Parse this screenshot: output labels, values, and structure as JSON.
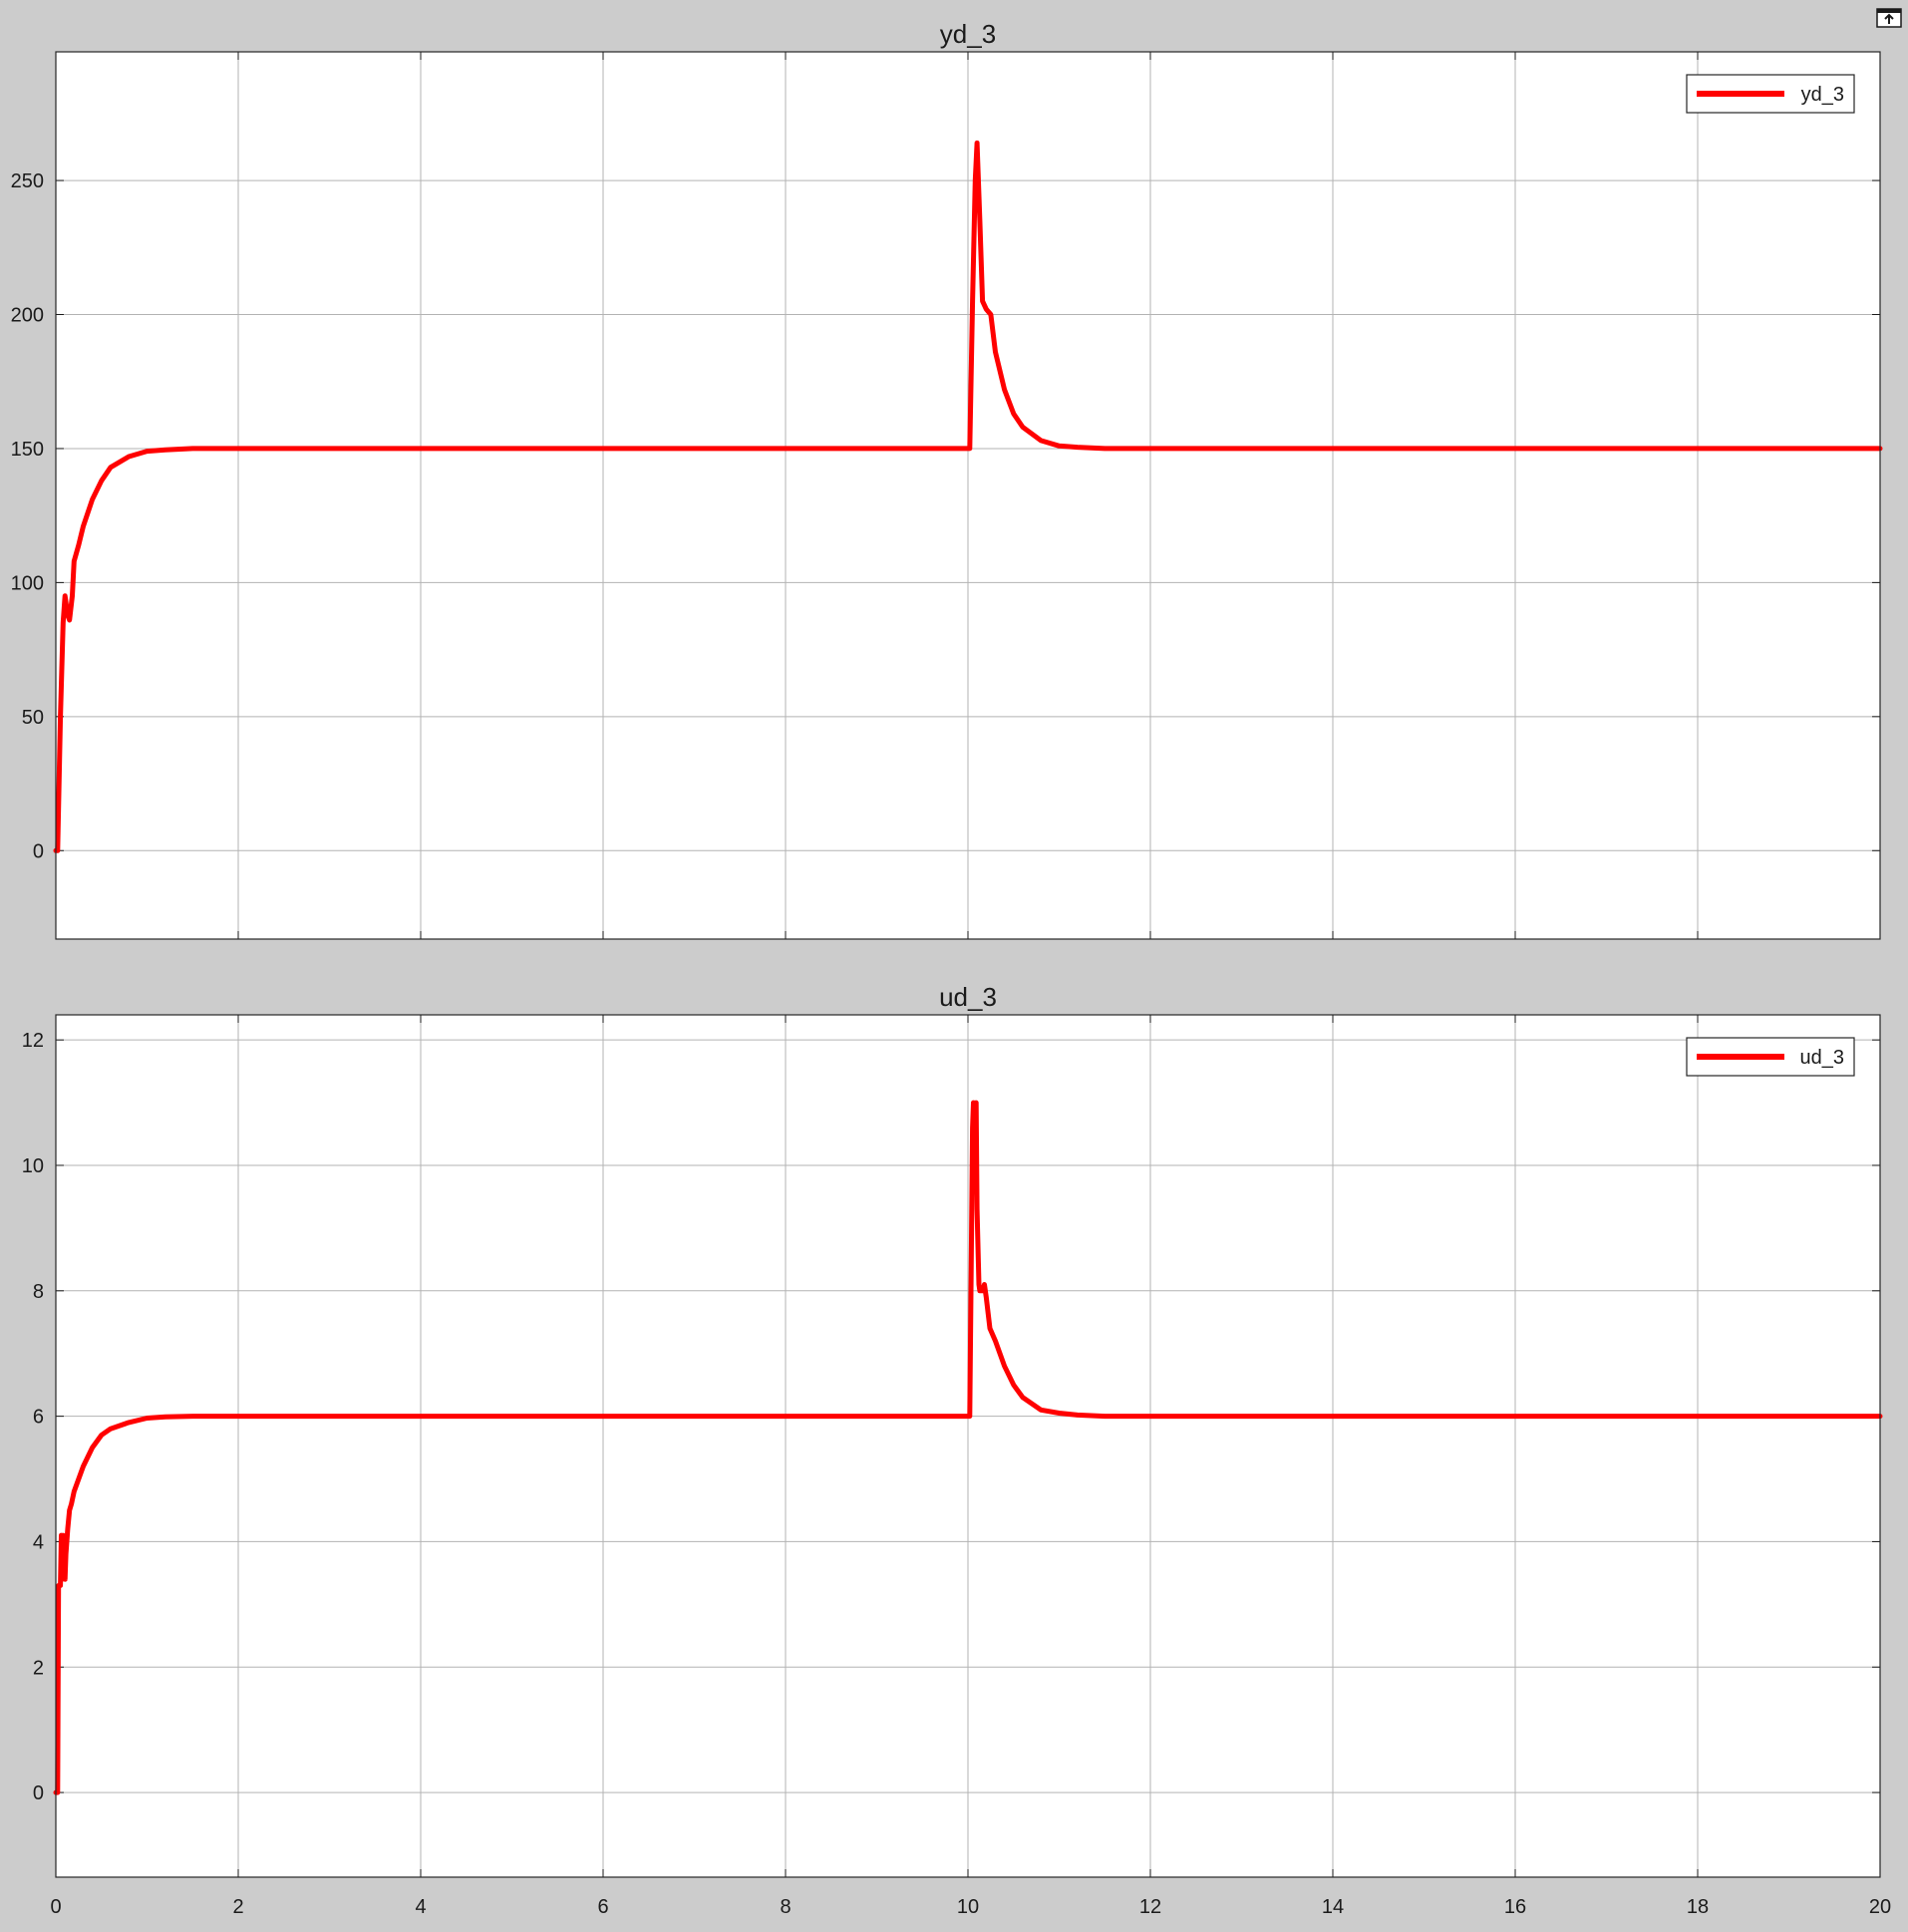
{
  "window": {
    "undock_icon": "undock-icon"
  },
  "colors": {
    "background": "#cccccc",
    "axes_bg": "#ffffff",
    "grid": "#b3b3b3",
    "line": "#ff0000",
    "text": "#1a1a1a"
  },
  "chart_data": [
    {
      "type": "line",
      "title": "yd_3",
      "xlabel": "",
      "ylabel": "",
      "xlim": [
        0,
        20
      ],
      "ylim": [
        -33,
        298
      ],
      "xticks": [
        0,
        2,
        4,
        6,
        8,
        10,
        12,
        14,
        16,
        18,
        20
      ],
      "xtick_labels": [
        "",
        "",
        "",
        "",
        "",
        "",
        "",
        "",
        "",
        "",
        ""
      ],
      "yticks": [
        0,
        50,
        100,
        150,
        200,
        250
      ],
      "ytick_labels": [
        "0",
        "50",
        "100",
        "150",
        "200",
        "250"
      ],
      "grid": true,
      "legend": "top-right",
      "series": [
        {
          "name": "yd_3",
          "color": "#ff0000",
          "x": [
            0,
            0.02,
            0.05,
            0.08,
            0.1,
            0.13,
            0.15,
            0.18,
            0.2,
            0.25,
            0.3,
            0.4,
            0.5,
            0.6,
            0.8,
            1.0,
            1.2,
            1.5,
            2.0,
            3,
            4,
            5,
            6,
            7,
            8,
            9,
            10.0,
            10.02,
            10.05,
            10.08,
            10.1,
            10.13,
            10.16,
            10.2,
            10.25,
            10.3,
            10.4,
            10.5,
            10.6,
            10.8,
            11.0,
            11.2,
            11.5,
            12.0,
            13,
            14,
            15,
            16,
            17,
            18,
            19,
            20
          ],
          "y": [
            0,
            0,
            50,
            85,
            95,
            88,
            86,
            95,
            108,
            114,
            121,
            131,
            138,
            143,
            147,
            149,
            149.5,
            150,
            150,
            150,
            150,
            150,
            150,
            150,
            150,
            150,
            150,
            150,
            205,
            250,
            264,
            235,
            205,
            202,
            200,
            186,
            172,
            163,
            158,
            153,
            151,
            150.5,
            150,
            150,
            150,
            150,
            150,
            150,
            150,
            150,
            150,
            150
          ]
        }
      ]
    },
    {
      "type": "line",
      "title": "ud_3",
      "xlabel": "",
      "ylabel": "",
      "xlim": [
        0,
        20
      ],
      "ylim": [
        -1.35,
        12.4
      ],
      "xticks": [
        0,
        2,
        4,
        6,
        8,
        10,
        12,
        14,
        16,
        18,
        20
      ],
      "xtick_labels": [
        "0",
        "2",
        "4",
        "6",
        "8",
        "10",
        "12",
        "14",
        "16",
        "18",
        "20"
      ],
      "yticks": [
        0,
        2,
        4,
        6,
        8,
        10,
        12
      ],
      "ytick_labels": [
        "0",
        "2",
        "4",
        "6",
        "8",
        "10",
        "12"
      ],
      "grid": true,
      "legend": "top-right",
      "series": [
        {
          "name": "ud_3",
          "color": "#ff0000",
          "x": [
            0,
            0.02,
            0.03,
            0.05,
            0.06,
            0.07,
            0.08,
            0.1,
            0.11,
            0.13,
            0.15,
            0.17,
            0.2,
            0.25,
            0.3,
            0.4,
            0.5,
            0.6,
            0.8,
            1.0,
            1.2,
            1.5,
            2.0,
            3,
            4,
            5,
            6,
            7,
            8,
            9,
            10.0,
            10.02,
            10.05,
            10.06,
            10.08,
            10.09,
            10.1,
            10.12,
            10.13,
            10.16,
            10.18,
            10.2,
            10.24,
            10.3,
            10.4,
            10.5,
            10.6,
            10.8,
            11.0,
            11.2,
            11.5,
            12.0,
            13,
            14,
            15,
            16,
            17,
            18,
            19,
            20
          ],
          "y": [
            0,
            0,
            3.3,
            3.3,
            4.1,
            3.4,
            4.1,
            3.4,
            3.8,
            4.2,
            4.5,
            4.6,
            4.8,
            5.0,
            5.2,
            5.5,
            5.7,
            5.8,
            5.9,
            5.97,
            5.99,
            6.0,
            6.0,
            6.0,
            6.0,
            6.0,
            6.0,
            6.0,
            6.0,
            6.0,
            6.0,
            6.0,
            10.6,
            11.0,
            10.5,
            11.0,
            9.3,
            8.1,
            8.0,
            8.0,
            8.1,
            7.9,
            7.4,
            7.2,
            6.8,
            6.5,
            6.3,
            6.1,
            6.05,
            6.02,
            6.0,
            6.0,
            6.0,
            6.0,
            6.0,
            6.0,
            6.0,
            6.0,
            6.0,
            6.0
          ]
        }
      ]
    }
  ]
}
